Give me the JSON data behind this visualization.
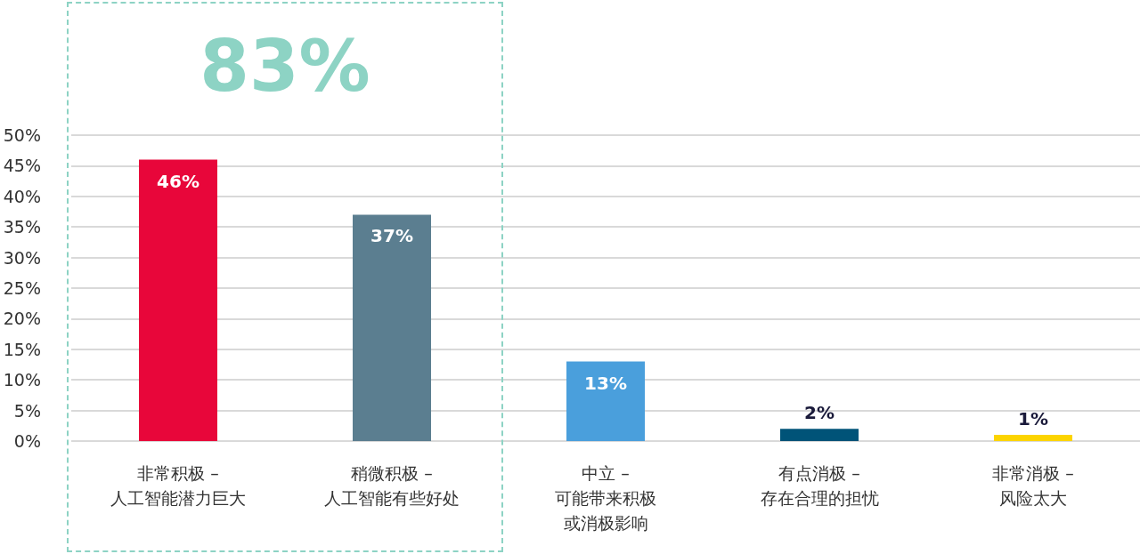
{
  "chart_data": {
    "type": "bar",
    "categories": [
      "非常积极 –\n人工智能潜力巨大",
      "稍微积极 –\n人工智能有些好处",
      "中立 –\n可能带来积极或消极影响",
      "有点消极 –\n存在合理的担忧",
      "非常消极 –\n风险太大"
    ],
    "values": [
      46,
      37,
      13,
      2,
      1
    ],
    "colors": [
      "#e8063a",
      "#5b7e90",
      "#4a9fdc",
      "#005378",
      "#fcd400"
    ],
    "value_labels": [
      "46%",
      "37%",
      "13%",
      "2%",
      "1%"
    ],
    "ylim": [
      0,
      50
    ],
    "yticks": [
      {
        "value": 0,
        "label": "0%"
      },
      {
        "value": 5,
        "label": "5%"
      },
      {
        "value": 10,
        "label": "10%"
      },
      {
        "value": 15,
        "label": "15%"
      },
      {
        "value": 20,
        "label": "20%"
      },
      {
        "value": 25,
        "label": "25%"
      },
      {
        "value": 30,
        "label": "30%"
      },
      {
        "value": 35,
        "label": "35%"
      },
      {
        "value": 40,
        "label": "40%"
      },
      {
        "value": 45,
        "label": "45%"
      },
      {
        "value": 50,
        "label": "50%"
      }
    ],
    "grid": "y",
    "annotations": [
      "83%"
    ]
  }
}
